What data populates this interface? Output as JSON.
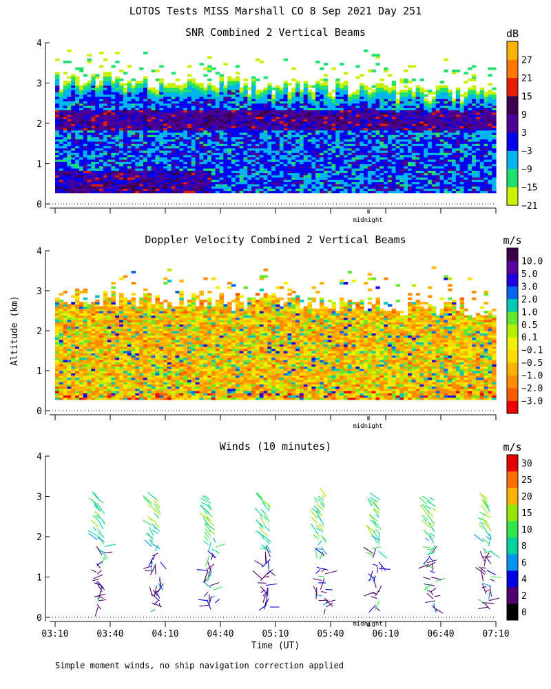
{
  "figure": {
    "title": "LOTOS Tests MISS Marshall CO   8 Sep 2021 Day 251",
    "ylabel": "Altitude (km)",
    "xlabel": "Time (UT)",
    "footnote": "Simple moment winds, no ship navigation correction applied",
    "midnight_label": "midnight"
  },
  "chart_data": [
    {
      "type": "heatmap",
      "title": "SNR Combined 2 Vertical Beams",
      "xlabel": "Time (UT)",
      "ylabel": "Altitude (km)",
      "xlim": [
        "03:10",
        "07:10"
      ],
      "ylim": [
        0,
        4
      ],
      "y_ticks": [
        "0",
        "1",
        "2",
        "3",
        "4"
      ],
      "colorbar_unit": "dB",
      "colorbar_ticks": [
        "27",
        "21",
        "15",
        "9",
        "3",
        "−3",
        "−9",
        "−15",
        "−21"
      ],
      "colors": [
        "#c8f000",
        "#22e070",
        "#00b4f0",
        "#0000f0",
        "#4b0096",
        "#3c0050",
        "#e61e00",
        "#ff7800",
        "#ffb400"
      ],
      "data_top_km": 3.8,
      "data_bottom_km": 0.25
    },
    {
      "type": "heatmap",
      "title": "Doppler Velocity Combined 2 Vertical Beams",
      "xlabel": "Time (UT)",
      "ylabel": "Altitude (km)",
      "xlim": [
        "03:10",
        "07:10"
      ],
      "ylim": [
        0,
        4
      ],
      "y_ticks": [
        "0",
        "1",
        "2",
        "3",
        "4"
      ],
      "colorbar_unit": "m/s",
      "colorbar_ticks": [
        "10.0",
        "5.0",
        "3.0",
        "2.0",
        "1.0",
        "0.5",
        "0.1",
        "−0.1",
        "−0.5",
        "−1.0",
        "−2.0",
        "−3.0"
      ],
      "colors": [
        "#f00000",
        "#ff5a00",
        "#ff8c00",
        "#ffb400",
        "#ffdc00",
        "#f0f000",
        "#b4f000",
        "#64e632",
        "#00c8b4",
        "#0064f0",
        "#1e00dc",
        "#5a00a0",
        "#3c0046"
      ],
      "data_top_km": 3.6,
      "data_bottom_km": 0.25
    },
    {
      "type": "scatter",
      "title": "Winds (10 minutes)",
      "xlabel": "Time (UT)",
      "ylabel": "Altitude (km)",
      "xlim": [
        "03:10",
        "07:10"
      ],
      "ylim": [
        0,
        4
      ],
      "y_ticks": [
        "0",
        "1",
        "2",
        "3",
        "4"
      ],
      "x_ticks": [
        "03:10",
        "03:40",
        "04:10",
        "04:40",
        "05:10",
        "05:40",
        "06:10",
        "06:40",
        "07:10"
      ],
      "colorbar_unit": "m/s",
      "colorbar_ticks": [
        "0",
        "2",
        "4",
        "6",
        "8",
        "10",
        "15",
        "20",
        "25",
        "30"
      ],
      "colors": [
        "#000000",
        "#50006e",
        "#0000e6",
        "#0096f0",
        "#00d2a0",
        "#32e64b",
        "#96e600",
        "#ffb400",
        "#ff6e00",
        "#e60000"
      ],
      "profile_times_min": [
        25,
        55,
        85,
        115,
        145,
        175,
        205,
        235
      ]
    }
  ]
}
